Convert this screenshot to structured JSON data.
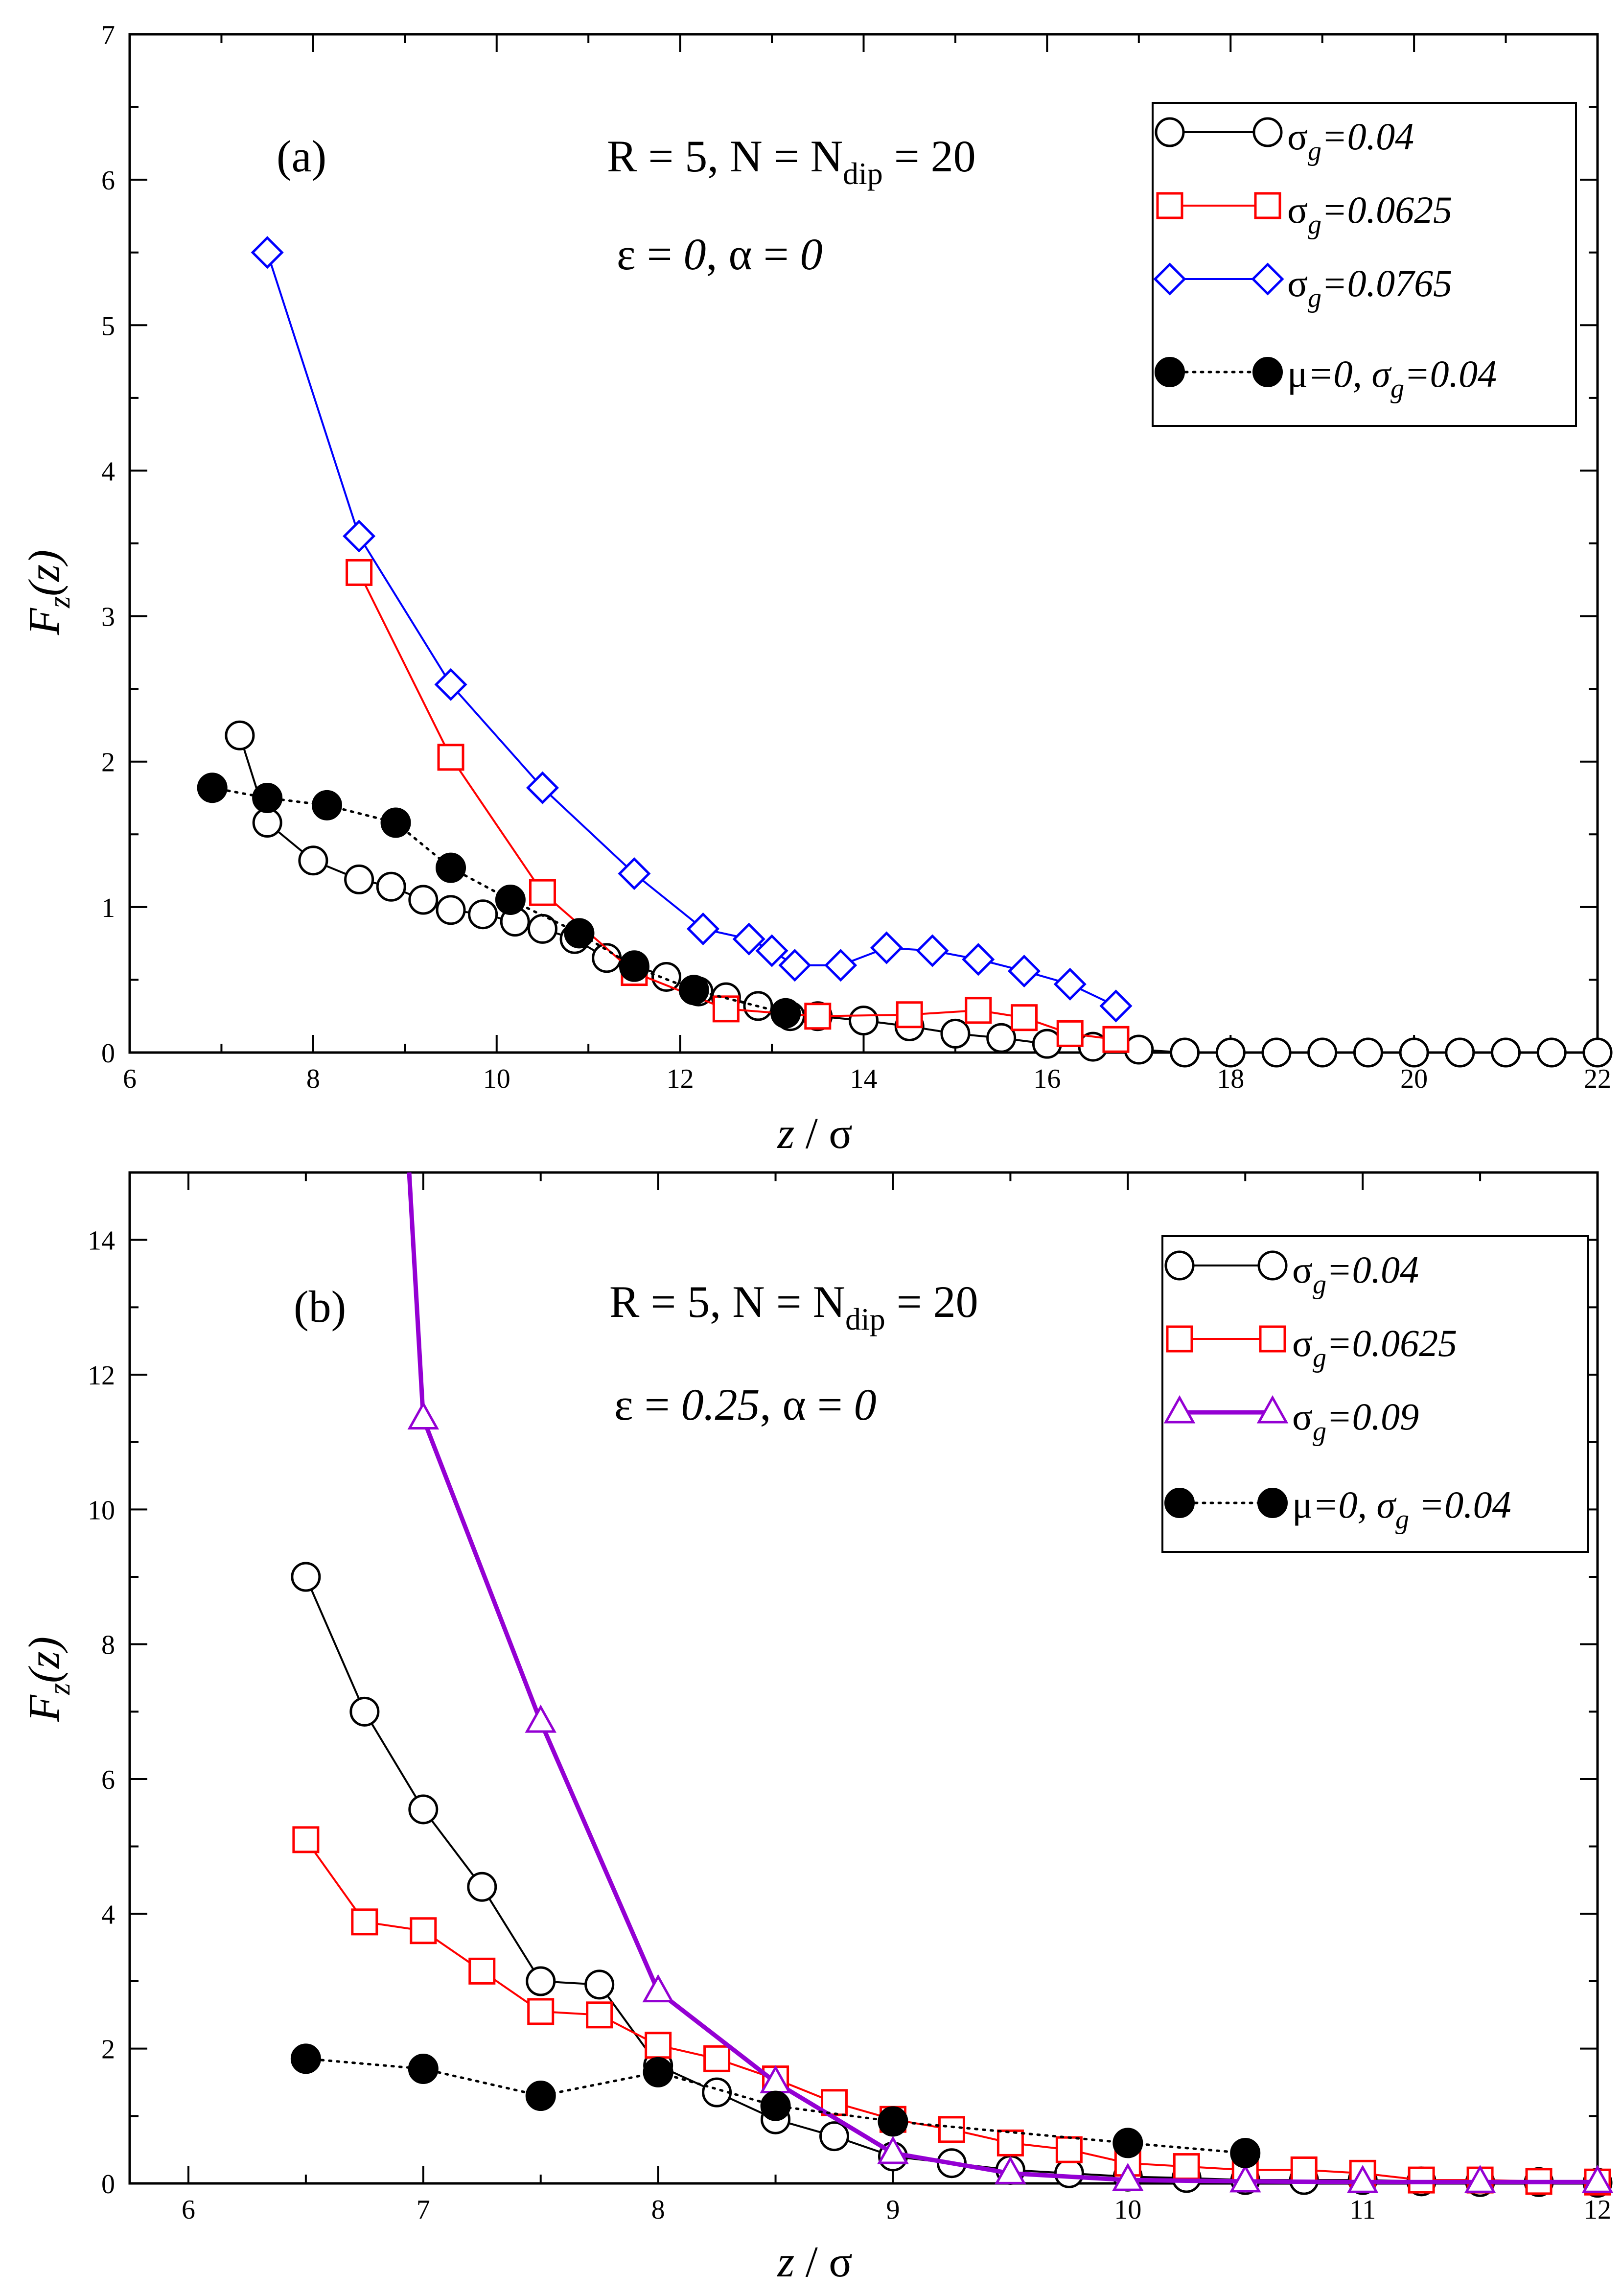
{
  "figure": {
    "panels": [
      {
        "id": "a",
        "tag": "(a)",
        "annot_line1_pre": "R = 5,  N = N",
        "annot_line1_sub": "dip",
        "annot_line1_post": " = 20",
        "annot_line2_eps": "ε = ",
        "annot_line2_eps_val": "0",
        "annot_line2_alpha": ",   α = ",
        "annot_line2_alpha_val": "0",
        "xlabel": "z / σ",
        "ylabel_main": "F",
        "ylabel_sub": "z",
        "ylabel_arg": "(z)",
        "legend": [
          {
            "sym": "σ",
            "sub": "g",
            "val": "=0.04"
          },
          {
            "sym": "σ",
            "sub": "g",
            "val": "=0.0625"
          },
          {
            "sym": "σ",
            "sub": "g",
            "val": "=0.0765"
          },
          {
            "sym": "μ",
            "val": "=0, σ",
            "sub": "g",
            "val2": "=0.04"
          }
        ]
      },
      {
        "id": "b",
        "tag": "(b)",
        "annot_line1_pre": "R = 5,  N = N",
        "annot_line1_sub": "dip",
        "annot_line1_post": " = 20",
        "annot_line2_eps": "ε = ",
        "annot_line2_eps_val": "0.25",
        "annot_line2_alpha": ",  α = ",
        "annot_line2_alpha_val": "0",
        "xlabel": "z / σ",
        "ylabel_main": "F",
        "ylabel_sub": "z",
        "ylabel_arg": "(z)",
        "legend": [
          {
            "sym": "σ",
            "sub": "g",
            "val": "=0.04"
          },
          {
            "sym": "σ",
            "sub": "g",
            "val": "=0.0625"
          },
          {
            "sym": "σ",
            "sub": "g",
            "val": "=0.09"
          },
          {
            "sym": "μ",
            "val": "=0, σ",
            "sub": "g",
            "val2": " =0.04"
          }
        ]
      }
    ]
  },
  "chart_data": [
    {
      "type": "line",
      "panel": "(a)",
      "xlabel": "z / σ",
      "ylabel": "F_z(z)",
      "xlim": [
        6,
        22
      ],
      "ylim": [
        0,
        7
      ],
      "xticks": [
        6,
        8,
        10,
        12,
        14,
        16,
        18,
        20,
        22
      ],
      "yticks": [
        0,
        1,
        2,
        3,
        4,
        5,
        6,
        7
      ],
      "series": [
        {
          "name": "σg=0.04",
          "color": "#000000",
          "marker": "open-circle",
          "line": "solid",
          "x": [
            7.2,
            7.5,
            8.0,
            8.5,
            8.85,
            9.2,
            9.5,
            9.85,
            10.2,
            10.5,
            10.85,
            11.2,
            11.5,
            11.85,
            12.2,
            12.5,
            12.85,
            13.2,
            13.5,
            14.0,
            14.5,
            15.0,
            15.5,
            16.0,
            16.5,
            17.0,
            17.5,
            18.0,
            18.5,
            19.0,
            19.5,
            20.0,
            20.5,
            21.0,
            21.5,
            22.0
          ],
          "y": [
            2.18,
            1.58,
            1.32,
            1.19,
            1.14,
            1.05,
            0.98,
            0.95,
            0.9,
            0.85,
            0.78,
            0.65,
            0.6,
            0.52,
            0.42,
            0.38,
            0.32,
            0.25,
            0.25,
            0.22,
            0.18,
            0.13,
            0.1,
            0.06,
            0.04,
            0.02,
            0.0,
            0.0,
            0.0,
            0.0,
            0.0,
            0.0,
            0.0,
            0.0,
            0.0,
            0.0
          ]
        },
        {
          "name": "σg=0.0625",
          "color": "#ff0000",
          "marker": "open-square",
          "line": "solid",
          "x": [
            8.5,
            9.5,
            10.5,
            11.5,
            12.5,
            13.5,
            14.5,
            15.25,
            15.75,
            16.25,
            16.75
          ],
          "y": [
            3.3,
            2.03,
            1.1,
            0.55,
            0.3,
            0.25,
            0.26,
            0.29,
            0.24,
            0.13,
            0.09
          ]
        },
        {
          "name": "σg=0.0765",
          "color": "#0000ff",
          "marker": "open-diamond",
          "line": "solid",
          "x": [
            7.5,
            8.5,
            9.5,
            10.5,
            11.5,
            12.25,
            12.75,
            13.0,
            13.25,
            13.75,
            14.25,
            14.75,
            15.25,
            15.75,
            16.25,
            16.75
          ],
          "y": [
            5.5,
            3.55,
            2.53,
            1.82,
            1.23,
            0.85,
            0.78,
            0.7,
            0.6,
            0.6,
            0.72,
            0.7,
            0.64,
            0.56,
            0.47,
            0.32
          ]
        },
        {
          "name": "μ=0, σg=0.04",
          "color": "#000000",
          "marker": "filled-circle",
          "line": "dotted",
          "x": [
            6.9,
            7.5,
            8.15,
            8.9,
            9.5,
            10.15,
            10.9,
            11.5,
            12.15,
            13.15
          ],
          "y": [
            1.82,
            1.75,
            1.7,
            1.58,
            1.27,
            1.05,
            0.82,
            0.59,
            0.43,
            0.27
          ]
        }
      ]
    },
    {
      "type": "line",
      "panel": "(b)",
      "xlabel": "z / σ",
      "ylabel": "F_z(z)",
      "xlim": [
        5.75,
        12
      ],
      "ylim": [
        0,
        15
      ],
      "xticks": [
        6,
        7,
        8,
        9,
        10,
        11,
        12
      ],
      "yticks": [
        0,
        2,
        4,
        6,
        8,
        10,
        12,
        14
      ],
      "series": [
        {
          "name": "σg=0.04",
          "color": "#000000",
          "marker": "open-circle",
          "line": "solid",
          "x": [
            6.5,
            6.75,
            7.0,
            7.25,
            7.5,
            7.75,
            8.0,
            8.25,
            8.5,
            8.75,
            9.0,
            9.25,
            9.5,
            9.75,
            10.0,
            10.25,
            10.5,
            10.75,
            11.0,
            11.25,
            11.5,
            11.75,
            12.0
          ],
          "y": [
            9.0,
            7.0,
            5.55,
            4.4,
            3.0,
            2.95,
            1.75,
            1.35,
            0.95,
            0.7,
            0.4,
            0.3,
            0.2,
            0.15,
            0.1,
            0.08,
            0.05,
            0.05,
            0.05,
            0.03,
            0.02,
            0.02,
            0.01
          ]
        },
        {
          "name": "σg=0.0625",
          "color": "#ff0000",
          "marker": "open-square",
          "line": "solid",
          "x": [
            6.5,
            6.75,
            7.0,
            7.25,
            7.5,
            7.75,
            8.0,
            8.25,
            8.5,
            8.75,
            9.0,
            9.25,
            9.5,
            9.75,
            10.0,
            10.25,
            10.5,
            10.75,
            11.0,
            11.25,
            11.5,
            11.75,
            12.0
          ],
          "y": [
            5.1,
            3.88,
            3.75,
            3.15,
            2.55,
            2.5,
            2.05,
            1.85,
            1.55,
            1.2,
            0.95,
            0.8,
            0.6,
            0.5,
            0.3,
            0.25,
            0.2,
            0.2,
            0.15,
            0.05,
            0.05,
            0.03,
            0.02
          ]
        },
        {
          "name": "σg=0.09",
          "color": "#9400d3",
          "marker": "open-triangle",
          "line": "solid-thick",
          "x": [
            6.94,
            7.0,
            7.5,
            8.0,
            8.5,
            9.0,
            9.5,
            10.0,
            10.5,
            11.0,
            11.5,
            12.0
          ],
          "y": [
            15.0,
            11.35,
            6.85,
            2.85,
            1.5,
            0.45,
            0.15,
            0.05,
            0.03,
            0.02,
            0.02,
            0.02
          ],
          "marker_x": [
            7.0,
            7.5,
            8.0,
            8.5,
            9.0,
            9.5,
            10.0,
            10.5,
            11.0,
            11.5,
            12.0
          ]
        },
        {
          "name": "μ=0, σg=0.04",
          "color": "#000000",
          "marker": "filled-circle",
          "line": "dotted",
          "x": [
            6.5,
            7.0,
            7.5,
            8.0,
            8.5,
            9.0,
            10.0,
            10.5
          ],
          "y": [
            1.85,
            1.7,
            1.3,
            1.65,
            1.15,
            0.92,
            0.6,
            0.45
          ]
        }
      ]
    }
  ]
}
